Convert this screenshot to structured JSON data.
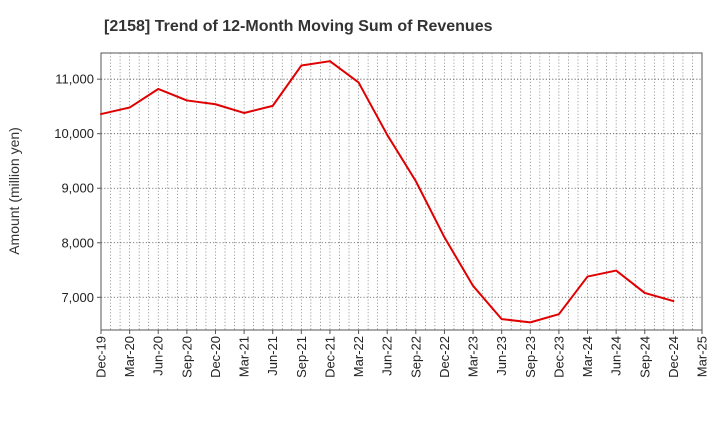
{
  "chart_data": {
    "type": "line",
    "title": "[2158]  Trend of 12-Month Moving Sum of Revenues",
    "xlabel": "",
    "ylabel": "Amount (million yen)",
    "x_ticks": [
      "Dec-19",
      "Mar-20",
      "Jun-20",
      "Sep-20",
      "Dec-20",
      "Mar-21",
      "Jun-21",
      "Sep-21",
      "Dec-21",
      "Mar-22",
      "Jun-22",
      "Sep-22",
      "Dec-22",
      "Mar-23",
      "Jun-23",
      "Sep-23",
      "Dec-23",
      "Mar-24",
      "Jun-24",
      "Sep-24",
      "Dec-24",
      "Mar-25"
    ],
    "y_ticks": [
      7000,
      8000,
      9000,
      10000,
      11000
    ],
    "y_tick_labels": [
      "7,000",
      "8,000",
      "9,000",
      "10,000",
      "11,000"
    ],
    "ylim": [
      6400,
      11480
    ],
    "grid": true,
    "series": [
      {
        "color": "#e00000",
        "x": [
          "Dec-19",
          "Mar-20",
          "Jun-20",
          "Sep-20",
          "Dec-20",
          "Mar-21",
          "Jun-21",
          "Sep-21",
          "Dec-21",
          "Mar-22",
          "Jun-22",
          "Sep-22",
          "Dec-22",
          "Mar-23",
          "Jun-23",
          "Sep-23",
          "Dec-23",
          "Mar-24",
          "Jun-24",
          "Sep-24",
          "Dec-24"
        ],
        "values": [
          10360,
          10480,
          10820,
          10610,
          10540,
          10380,
          10510,
          11250,
          11330,
          10940,
          9980,
          9130,
          8100,
          7210,
          6600,
          6540,
          6690,
          7380,
          7490,
          7080,
          6930
        ]
      }
    ]
  }
}
